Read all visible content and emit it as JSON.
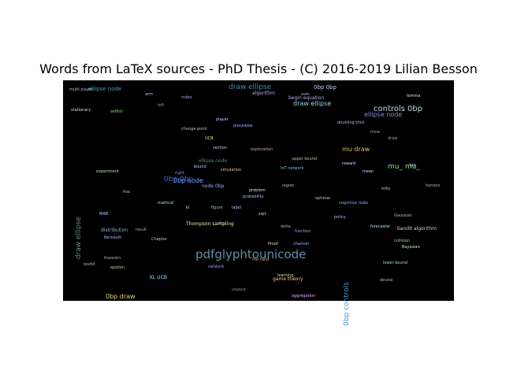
{
  "title": "Words from LaTeX sources - PhD Thesis - (C) 2016-2019 Lilian Besson",
  "words": [
    {
      "text": "pdfglyphtounicode",
      "color": "#5f8fa8"
    },
    {
      "text": "controls 0bp",
      "color": "#b9d9e6"
    },
    {
      "text": "draw ellipse",
      "color": "#4f86a0"
    },
    {
      "text": "0bp node",
      "color": "#7aa7ff"
    },
    {
      "text": "0bp 0bp",
      "color": "#3b6bd6"
    },
    {
      "text": "mu_ mu_",
      "color": "#8fe07a"
    },
    {
      "text": "draw ellipse",
      "color": "#6a8a7a"
    },
    {
      "text": "0bp controls",
      "color": "#3d9ad1"
    },
    {
      "text": "ellipse node",
      "color": "#7d8fd6"
    },
    {
      "text": "ellipse node",
      "color": "#5a9ab0"
    },
    {
      "text": "0bp draw",
      "color": "#e0d07a"
    },
    {
      "text": "0bp 0bp",
      "color": "#c7d0ff"
    },
    {
      "text": "mu draw",
      "color": "#e0c05a"
    },
    {
      "text": "draw ellipse",
      "color": "#9ad9e0"
    },
    {
      "text": "ellipse node",
      "color": "#5a8f6e"
    },
    {
      "text": "begin equation",
      "color": "#b0b0f0"
    },
    {
      "text": "algorithm",
      "color": "#c0a0ff"
    },
    {
      "text": "UCB",
      "color": "#f0e080"
    },
    {
      "text": "bandit algorithm",
      "color": "#d0d0d0"
    },
    {
      "text": "Thompson sampling",
      "color": "#f0f0a0"
    },
    {
      "text": "probability",
      "color": "#a0c0ff"
    },
    {
      "text": "distribution",
      "color": "#90b0d0"
    },
    {
      "text": "experiment",
      "color": "#b0e0a0"
    },
    {
      "text": "MAB",
      "color": "#a0d0ff"
    },
    {
      "text": "regret",
      "color": "#d0a0e0"
    },
    {
      "text": "IoT network",
      "color": "#80c0e0"
    },
    {
      "text": "network",
      "color": "#a0a0ff"
    },
    {
      "text": "Chapter",
      "color": "#c0c0e0"
    },
    {
      "text": "node 0bp",
      "color": "#a0b0f0"
    },
    {
      "text": "draw",
      "color": "#a0a0a0"
    },
    {
      "text": "Proof",
      "color": "#e0e0b0"
    },
    {
      "text": "section",
      "color": "#c0d0f0"
    },
    {
      "text": "label",
      "color": "#b0c0ff"
    },
    {
      "text": "left",
      "color": "#9090c0"
    },
    {
      "text": "right",
      "color": "#9090d0"
    },
    {
      "text": "mathcal",
      "color": "#a0e0c0"
    },
    {
      "text": "function",
      "color": "#a0a0e0"
    },
    {
      "text": "game theory",
      "color": "#f0d090"
    },
    {
      "text": "selfish",
      "color": "#80e080"
    },
    {
      "text": "player",
      "color": "#d0d0ff"
    },
    {
      "text": "arm",
      "color": "#9bd0ff"
    },
    {
      "text": "mean",
      "color": "#c0e0ff"
    },
    {
      "text": "policy",
      "color": "#d0b0ff"
    },
    {
      "text": "frac",
      "color": "#c0c0c0"
    },
    {
      "text": "hline",
      "color": "#a0a0c0"
    },
    {
      "text": "rho rand",
      "color": "#e0a0a0"
    },
    {
      "text": "KL UCB",
      "color": "#90e0ff"
    },
    {
      "text": "doubling trick",
      "color": "#c0b0e0"
    },
    {
      "text": "change point",
      "color": "#b0d0a0"
    },
    {
      "text": "piecewise",
      "color": "#a0b0ff"
    },
    {
      "text": "cognitive radio",
      "color": "#80b0ff"
    },
    {
      "text": "multi player",
      "color": "#a0c0e0"
    },
    {
      "text": "learning",
      "color": "#d0e0a0"
    },
    {
      "text": "bound",
      "color": "#c0d0ff"
    },
    {
      "text": "lower bound",
      "color": "#a0e0b0"
    },
    {
      "text": "upper bound",
      "color": "#d0c0a0"
    },
    {
      "text": "lemma",
      "color": "#e0e0e0"
    },
    {
      "text": "theorem",
      "color": "#c0a0d0"
    },
    {
      "text": "figure",
      "color": "#80d0c0"
    },
    {
      "text": "reward",
      "color": "#e0d0ff"
    },
    {
      "text": "collision",
      "color": "#a0d0a0"
    },
    {
      "text": "channel",
      "color": "#b0b0ff"
    },
    {
      "text": "device",
      "color": "#e0b0b0"
    },
    {
      "text": "horizon",
      "color": "#a0c0c0"
    },
    {
      "text": "stationary",
      "color": "#c0e0d0"
    },
    {
      "text": "exploration",
      "color": "#d0a0c0"
    },
    {
      "text": "index",
      "color": "#b0a0ff"
    },
    {
      "text": "vspace",
      "color": "#9090b0"
    },
    {
      "text": "textbf",
      "color": "#b0b0b0"
    },
    {
      "text": "cite",
      "color": "#a0a0d0"
    },
    {
      "text": "Bayesian",
      "color": "#c0f0c0"
    },
    {
      "text": "kl",
      "color": "#e0e0a0"
    },
    {
      "text": "delta",
      "color": "#a0b0c0"
    },
    {
      "text": "sum",
      "color": "#c0c0ff"
    },
    {
      "text": "epsilon",
      "color": "#d0d0a0"
    },
    {
      "text": "log",
      "color": "#b0e0e0"
    },
    {
      "text": "sqrt",
      "color": "#e0c0e0"
    },
    {
      "text": "infty",
      "color": "#a0f0a0"
    },
    {
      "text": "Bernoulli",
      "color": "#c0b0ff"
    },
    {
      "text": "Gaussian",
      "color": "#b0c0a0"
    },
    {
      "text": "simulation",
      "color": "#f0c0a0"
    },
    {
      "text": "optimal",
      "color": "#a0d0e0"
    },
    {
      "text": "problem",
      "color": "#d0e0ff"
    },
    {
      "text": "result",
      "color": "#b0a0c0"
    },
    {
      "text": "forecaster",
      "color": "#a0e0ff"
    },
    {
      "text": "aggregation",
      "color": "#e0b0ff"
    }
  ]
}
